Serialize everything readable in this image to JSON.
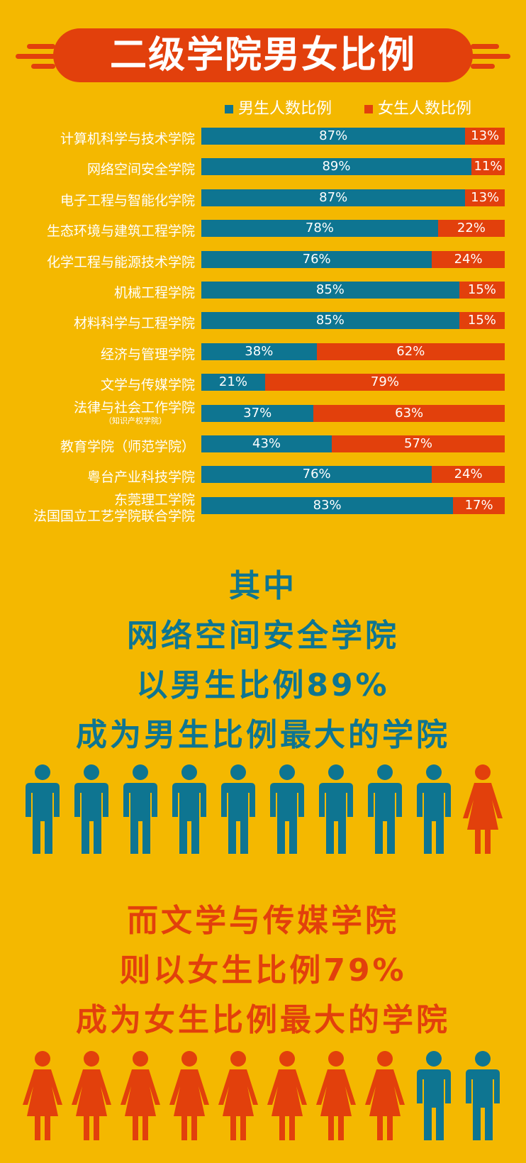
{
  "title": "二级学院男女比例",
  "colors": {
    "background": "#f4b800",
    "male": "#0e7591",
    "female": "#e2400c",
    "banner": "#e2400c"
  },
  "chart_data": {
    "type": "bar",
    "orientation": "horizontal",
    "stacked": true,
    "percent": true,
    "legend": {
      "placement": "top-right"
    },
    "categories": [
      {
        "name": "计算机科学与技术学院",
        "sub": ""
      },
      {
        "name": "网络空间安全学院",
        "sub": ""
      },
      {
        "name": "电子工程与智能化学院",
        "sub": ""
      },
      {
        "name": "生态环境与建筑工程学院",
        "sub": ""
      },
      {
        "name": "化学工程与能源技术学院",
        "sub": ""
      },
      {
        "name": "机械工程学院",
        "sub": ""
      },
      {
        "name": "材料科学与工程学院",
        "sub": ""
      },
      {
        "name": "经济与管理学院",
        "sub": ""
      },
      {
        "name": "文学与传媒学院",
        "sub": ""
      },
      {
        "name": "法律与社会工作学院",
        "sub": "（知识产权学院）"
      },
      {
        "name": "教育学院（师范学院）",
        "sub": ""
      },
      {
        "name": "粤台产业科技学院",
        "sub": ""
      },
      {
        "name": "东莞理工学院",
        "sub": "法国国立工艺学院联合学院"
      }
    ],
    "series": [
      {
        "name": "男生人数比例",
        "values": [
          87,
          89,
          87,
          78,
          76,
          85,
          85,
          38,
          21,
          37,
          43,
          76,
          83
        ]
      },
      {
        "name": "女生人数比例",
        "values": [
          13,
          11,
          13,
          22,
          24,
          15,
          15,
          62,
          79,
          63,
          57,
          24,
          17
        ]
      }
    ]
  },
  "male_highlight": {
    "lines": [
      "其中",
      "网络空间安全学院",
      "以男生比例89%",
      "成为男生比例最大的学院"
    ],
    "icons": [
      "male-figure-icon",
      "male-figure-icon",
      "male-figure-icon",
      "male-figure-icon",
      "male-figure-icon",
      "male-figure-icon",
      "male-figure-icon",
      "male-figure-icon",
      "male-figure-icon",
      "female-figure-icon"
    ]
  },
  "female_highlight": {
    "lines": [
      "而文学与传媒学院",
      "则以女生比例79%",
      "成为女生比例最大的学院"
    ],
    "icons": [
      "female-figure-icon",
      "female-figure-icon",
      "female-figure-icon",
      "female-figure-icon",
      "female-figure-icon",
      "female-figure-icon",
      "female-figure-icon",
      "female-figure-icon",
      "male-figure-icon",
      "male-figure-icon"
    ]
  }
}
